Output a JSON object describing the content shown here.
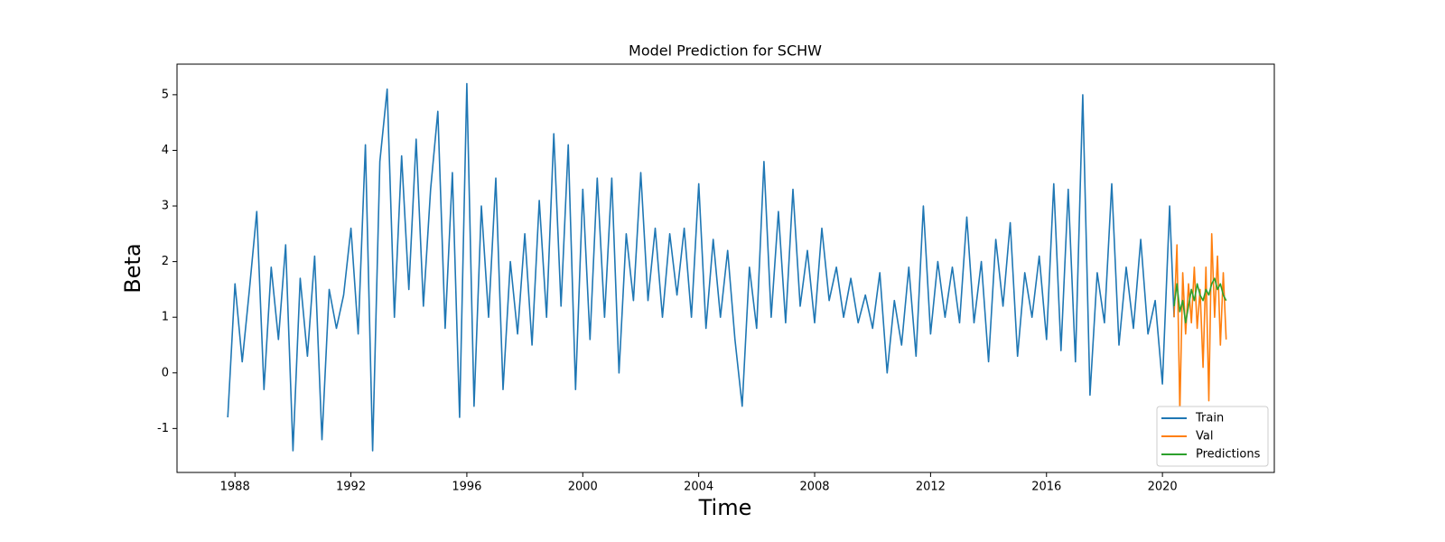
{
  "chart_data": {
    "type": "line",
    "title": "Model Prediction for SCHW",
    "x_label": "Time",
    "y_label": "Beta",
    "xlim": [
      1986.0,
      2023.86
    ],
    "ylim": [
      -1.79,
      5.55
    ],
    "xticks": [
      1988,
      1992,
      1996,
      2000,
      2004,
      2008,
      2012,
      2016,
      2020
    ],
    "yticks": [
      -1,
      0,
      1,
      2,
      3,
      4,
      5
    ],
    "legend": "lower right",
    "series": [
      {
        "name": "Train",
        "color": "#1f77b4",
        "x": [
          1987.75,
          1988,
          1988.25,
          1988.5,
          1988.75,
          1989,
          1989.25,
          1989.5,
          1989.75,
          1990,
          1990.25,
          1990.5,
          1990.75,
          1991,
          1991.25,
          1991.5,
          1991.75,
          1992,
          1992.25,
          1992.5,
          1992.75,
          1993,
          1993.25,
          1993.5,
          1993.75,
          1994,
          1994.25,
          1994.5,
          1994.75,
          1995,
          1995.25,
          1995.5,
          1995.75,
          1996,
          1996.25,
          1996.5,
          1996.75,
          1997,
          1997.25,
          1997.5,
          1997.75,
          1998,
          1998.25,
          1998.5,
          1998.75,
          1999,
          1999.25,
          1999.5,
          1999.75,
          2000,
          2000.25,
          2000.5,
          2000.75,
          2001,
          2001.25,
          2001.5,
          2001.75,
          2002,
          2002.25,
          2002.5,
          2002.75,
          2003,
          2003.25,
          2003.5,
          2003.75,
          2004,
          2004.25,
          2004.5,
          2004.75,
          2005,
          2005.25,
          2005.5,
          2005.75,
          2006,
          2006.25,
          2006.5,
          2006.75,
          2007,
          2007.25,
          2007.5,
          2007.75,
          2008,
          2008.25,
          2008.5,
          2008.75,
          2009,
          2009.25,
          2009.5,
          2009.75,
          2010,
          2010.25,
          2010.5,
          2010.75,
          2011,
          2011.25,
          2011.5,
          2011.75,
          2012,
          2012.25,
          2012.5,
          2012.75,
          2013,
          2013.25,
          2013.5,
          2013.75,
          2014,
          2014.25,
          2014.5,
          2014.75,
          2015,
          2015.25,
          2015.5,
          2015.75,
          2016,
          2016.25,
          2016.5,
          2016.75,
          2017,
          2017.25,
          2017.5,
          2017.75,
          2018,
          2018.25,
          2018.5,
          2018.75,
          2019,
          2019.25,
          2019.5,
          2019.75,
          2020,
          2020.25,
          2020.4
        ],
        "values": [
          -0.8,
          1.6,
          0.2,
          1.5,
          2.9,
          -0.3,
          1.9,
          0.6,
          2.3,
          -1.4,
          1.7,
          0.3,
          2.1,
          -1.2,
          1.5,
          0.8,
          1.4,
          2.6,
          0.7,
          4.1,
          -1.4,
          3.8,
          5.1,
          1.0,
          3.9,
          1.5,
          4.2,
          1.2,
          3.3,
          4.7,
          0.8,
          3.6,
          -0.8,
          5.2,
          -0.6,
          3.0,
          1.0,
          3.5,
          -0.3,
          2.0,
          0.7,
          2.5,
          0.5,
          3.1,
          1.0,
          4.3,
          1.2,
          4.1,
          -0.3,
          3.3,
          0.6,
          3.5,
          1.0,
          3.5,
          0.0,
          2.5,
          1.3,
          3.6,
          1.3,
          2.6,
          1.0,
          2.5,
          1.4,
          2.6,
          1.0,
          3.4,
          0.8,
          2.4,
          1.0,
          2.2,
          0.6,
          -0.6,
          1.9,
          0.8,
          3.8,
          1.0,
          2.9,
          0.9,
          3.3,
          1.2,
          2.2,
          0.9,
          2.6,
          1.3,
          1.9,
          1.0,
          1.7,
          0.9,
          1.4,
          0.8,
          1.8,
          0.0,
          1.3,
          0.5,
          1.9,
          0.3,
          3.0,
          0.7,
          2.0,
          1.0,
          1.9,
          0.9,
          2.8,
          0.9,
          2.0,
          0.2,
          2.4,
          1.2,
          2.7,
          0.3,
          1.8,
          1.0,
          2.1,
          0.6,
          3.4,
          0.4,
          3.3,
          0.2,
          5.0,
          -0.4,
          1.8,
          0.9,
          3.4,
          0.5,
          1.9,
          0.8,
          2.4,
          0.7,
          1.3,
          -0.2,
          3.0,
          1.0
        ]
      },
      {
        "name": "Val",
        "color": "#ff7f0e",
        "x": [
          2020.4,
          2020.5,
          2020.6,
          2020.7,
          2020.8,
          2020.9,
          2021.0,
          2021.1,
          2021.2,
          2021.3,
          2021.4,
          2021.5,
          2021.6,
          2021.7,
          2021.8,
          2021.9,
          2022.0,
          2022.1,
          2022.2
        ],
        "values": [
          1.0,
          2.3,
          -0.7,
          1.8,
          0.7,
          1.6,
          0.9,
          1.9,
          0.8,
          1.5,
          0.1,
          1.9,
          -0.5,
          2.5,
          1.0,
          2.1,
          0.5,
          1.8,
          0.6
        ]
      },
      {
        "name": "Predictions",
        "color": "#2ca02c",
        "x": [
          2020.4,
          2020.5,
          2020.6,
          2020.7,
          2020.8,
          2020.9,
          2021.0,
          2021.1,
          2021.2,
          2021.3,
          2021.4,
          2021.5,
          2021.6,
          2021.7,
          2021.8,
          2021.9,
          2022.0,
          2022.1,
          2022.2
        ],
        "values": [
          1.2,
          1.6,
          1.1,
          1.3,
          0.9,
          1.2,
          1.5,
          1.3,
          1.6,
          1.4,
          1.3,
          1.5,
          1.4,
          1.6,
          1.7,
          1.5,
          1.6,
          1.4,
          1.3
        ]
      }
    ]
  }
}
